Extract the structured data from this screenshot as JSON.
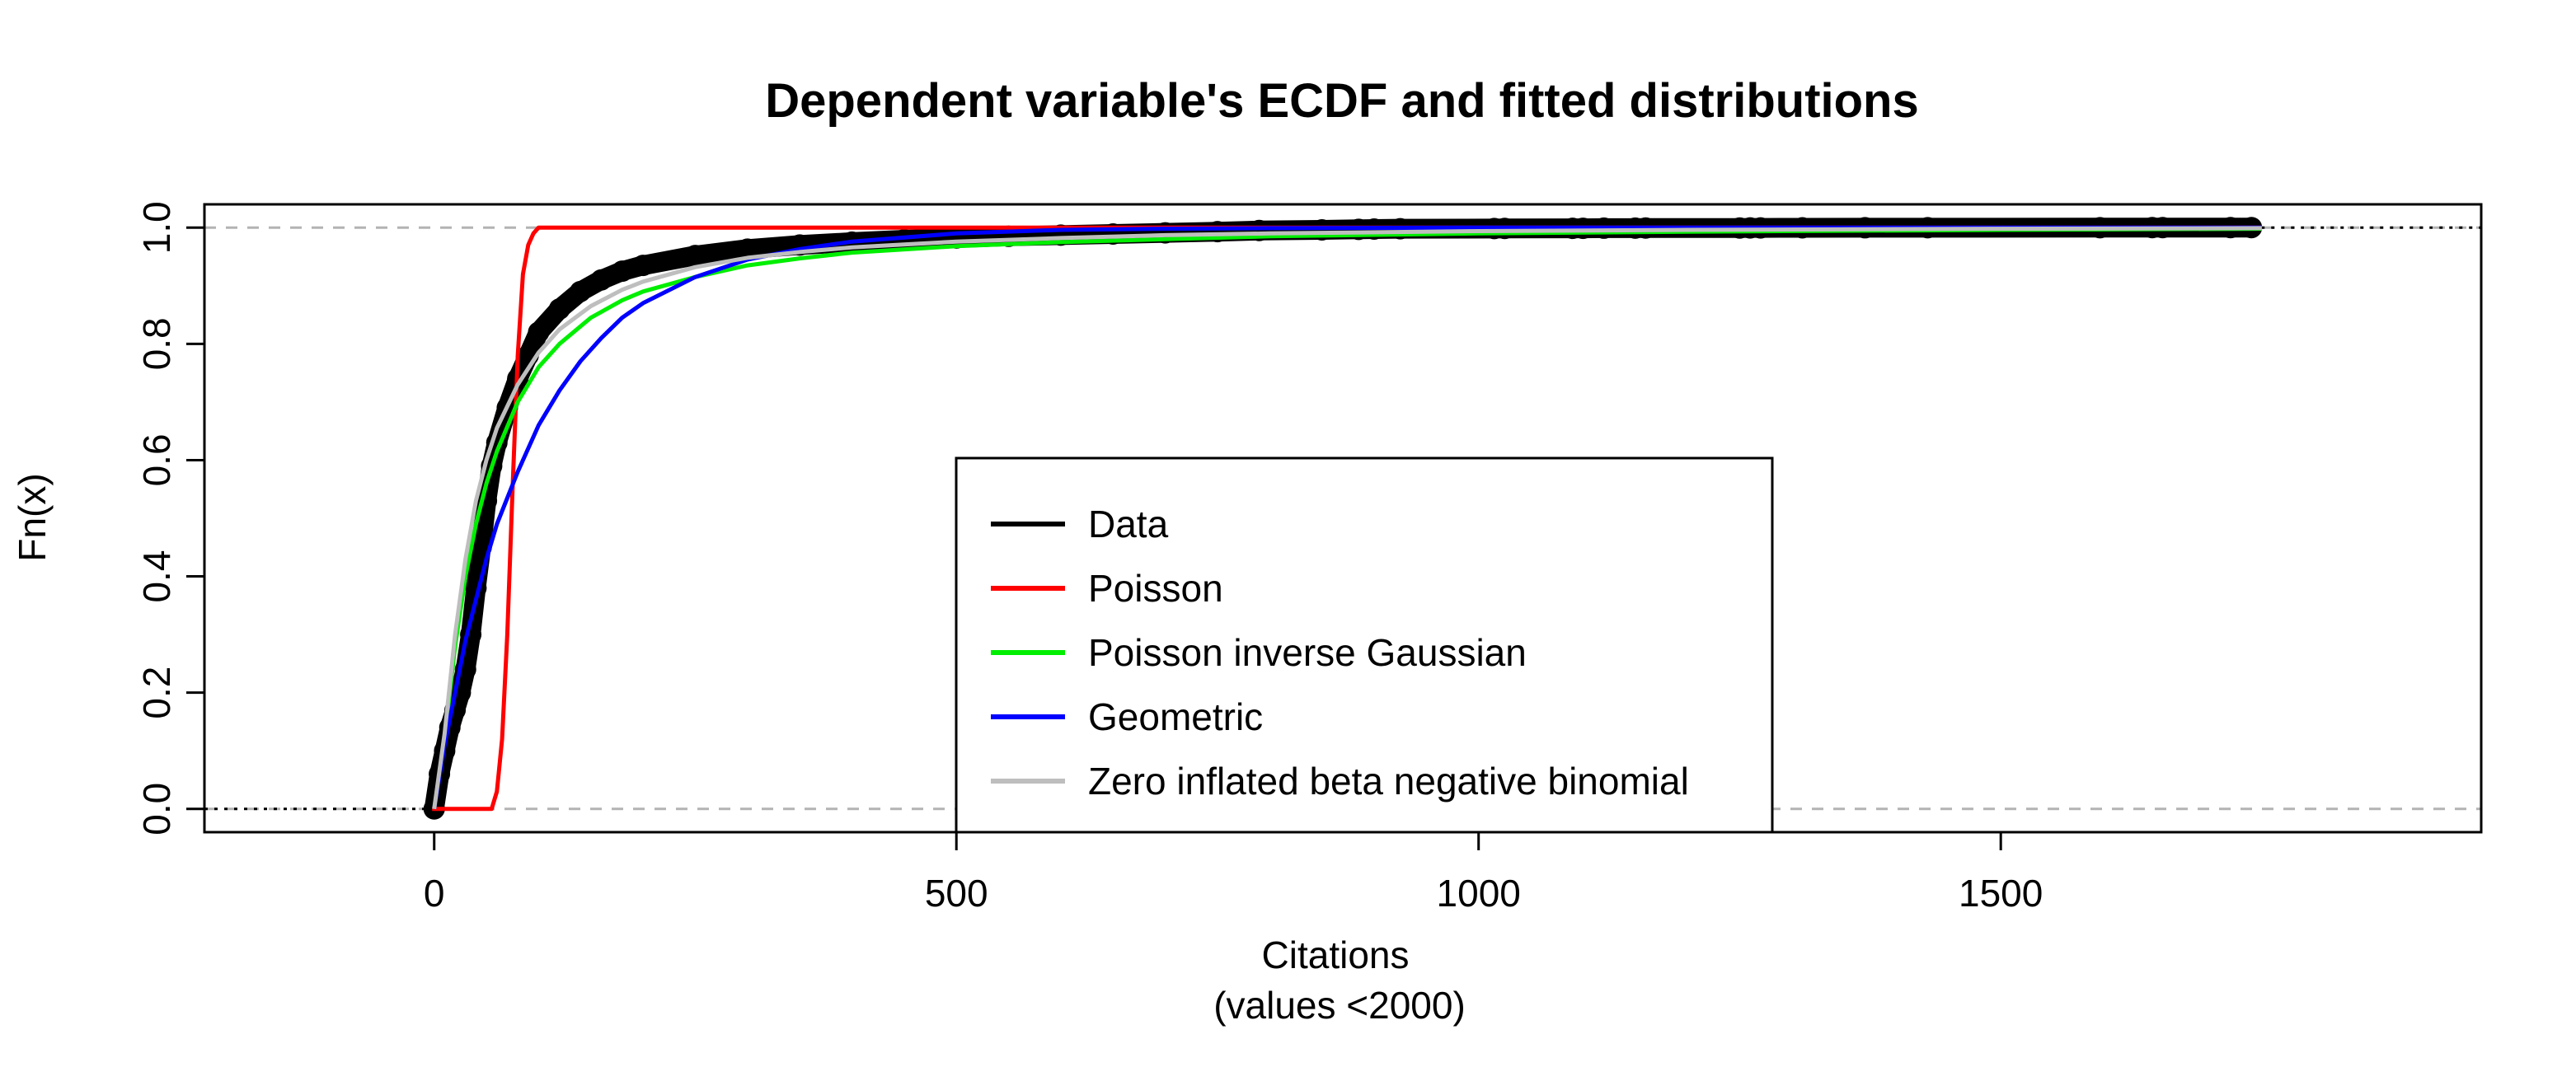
{
  "chart_data": {
    "type": "line",
    "title": "Dependent variable's ECDF and fitted distributions",
    "xlabel": "Citations",
    "xlabel_sub": "(values <2000)",
    "ylabel": "Fn(x)",
    "xlim": [
      -220,
      1960
    ],
    "ylim": [
      -0.04,
      1.04
    ],
    "x_ticks": [
      0,
      500,
      1000,
      1500
    ],
    "y_ticks": [
      0.0,
      0.2,
      0.4,
      0.6,
      0.8,
      1.0
    ],
    "x_tick_labels": [
      "0",
      "500",
      "1000",
      "1500"
    ],
    "y_tick_labels": [
      "0.0",
      "0.2",
      "0.4",
      "0.6",
      "0.8",
      "1.0"
    ],
    "reference_lines": [
      0,
      1
    ],
    "legend_position": "bottom-center",
    "series": [
      {
        "name": "Data",
        "color": "#000000",
        "style": "ecdf-points",
        "points": [
          [
            0,
            0.0
          ],
          [
            5,
            0.06
          ],
          [
            10,
            0.1
          ],
          [
            15,
            0.14
          ],
          [
            20,
            0.17
          ],
          [
            25,
            0.2
          ],
          [
            30,
            0.24
          ],
          [
            35,
            0.3
          ],
          [
            40,
            0.38
          ],
          [
            45,
            0.45
          ],
          [
            50,
            0.53
          ],
          [
            55,
            0.59
          ],
          [
            60,
            0.63
          ],
          [
            70,
            0.69
          ],
          [
            80,
            0.74
          ],
          [
            90,
            0.78
          ],
          [
            100,
            0.82
          ],
          [
            120,
            0.86
          ],
          [
            140,
            0.89
          ],
          [
            160,
            0.91
          ],
          [
            180,
            0.925
          ],
          [
            200,
            0.935
          ],
          [
            250,
            0.952
          ],
          [
            300,
            0.963
          ],
          [
            350,
            0.97
          ],
          [
            400,
            0.975
          ],
          [
            450,
            0.979
          ],
          [
            500,
            0.982
          ],
          [
            550,
            0.985
          ],
          [
            600,
            0.987
          ],
          [
            650,
            0.989
          ],
          [
            700,
            0.991
          ],
          [
            750,
            0.993
          ],
          [
            790,
            0.995
          ],
          [
            850,
            0.996
          ],
          [
            885,
            0.997
          ],
          [
            900,
            0.9975
          ],
          [
            925,
            0.998
          ],
          [
            1015,
            0.9983
          ],
          [
            1025,
            0.9985
          ],
          [
            1090,
            0.9987
          ],
          [
            1100,
            0.9988
          ],
          [
            1120,
            0.999
          ],
          [
            1150,
            0.9991
          ],
          [
            1160,
            0.9992
          ],
          [
            1250,
            0.9993
          ],
          [
            1260,
            0.9994
          ],
          [
            1270,
            0.9995
          ],
          [
            1310,
            0.9996
          ],
          [
            1370,
            0.9997
          ],
          [
            1430,
            0.9998
          ],
          [
            1595,
            0.99985
          ],
          [
            1645,
            0.9999
          ],
          [
            1655,
            0.99993
          ],
          [
            1720,
            0.99996
          ],
          [
            1740,
            1.0
          ]
        ]
      },
      {
        "name": "Poisson",
        "color": "#ff0000",
        "style": "line",
        "points": [
          [
            -2,
            0.0
          ],
          [
            55,
            0.0
          ],
          [
            60,
            0.03
          ],
          [
            65,
            0.12
          ],
          [
            70,
            0.3
          ],
          [
            75,
            0.55
          ],
          [
            80,
            0.78
          ],
          [
            85,
            0.92
          ],
          [
            90,
            0.97
          ],
          [
            95,
            0.99
          ],
          [
            100,
            1.0
          ],
          [
            1750,
            1.0
          ]
        ]
      },
      {
        "name": "Poisson inverse Gaussian",
        "color": "#00ee00",
        "style": "line",
        "points": [
          [
            0,
            0.0
          ],
          [
            10,
            0.12
          ],
          [
            20,
            0.28
          ],
          [
            30,
            0.4
          ],
          [
            40,
            0.49
          ],
          [
            50,
            0.56
          ],
          [
            60,
            0.615
          ],
          [
            80,
            0.7
          ],
          [
            100,
            0.76
          ],
          [
            120,
            0.8
          ],
          [
            150,
            0.845
          ],
          [
            180,
            0.875
          ],
          [
            200,
            0.89
          ],
          [
            250,
            0.915
          ],
          [
            300,
            0.935
          ],
          [
            350,
            0.947
          ],
          [
            400,
            0.957
          ],
          [
            500,
            0.968
          ],
          [
            600,
            0.975
          ],
          [
            700,
            0.98
          ],
          [
            800,
            0.985
          ],
          [
            1000,
            0.99
          ],
          [
            1200,
            0.993
          ],
          [
            1500,
            0.996
          ],
          [
            1750,
            0.998
          ]
        ]
      },
      {
        "name": "Geometric",
        "color": "#0000ff",
        "style": "line",
        "points": [
          [
            0,
            0.0
          ],
          [
            10,
            0.11
          ],
          [
            20,
            0.2
          ],
          [
            30,
            0.29
          ],
          [
            40,
            0.36
          ],
          [
            50,
            0.43
          ],
          [
            60,
            0.49
          ],
          [
            80,
            0.58
          ],
          [
            100,
            0.66
          ],
          [
            120,
            0.72
          ],
          [
            140,
            0.77
          ],
          [
            160,
            0.81
          ],
          [
            180,
            0.845
          ],
          [
            200,
            0.87
          ],
          [
            250,
            0.915
          ],
          [
            300,
            0.945
          ],
          [
            350,
            0.963
          ],
          [
            400,
            0.976
          ],
          [
            500,
            0.99
          ],
          [
            600,
            0.996
          ],
          [
            700,
            0.998
          ],
          [
            800,
            0.999
          ],
          [
            1000,
            1.0
          ],
          [
            1750,
            1.0
          ]
        ]
      },
      {
        "name": "Zero inflated beta negative binomial",
        "color": "#bebebe",
        "style": "line",
        "points": [
          [
            0,
            0.0
          ],
          [
            10,
            0.13
          ],
          [
            20,
            0.3
          ],
          [
            30,
            0.43
          ],
          [
            40,
            0.53
          ],
          [
            50,
            0.6
          ],
          [
            60,
            0.655
          ],
          [
            80,
            0.73
          ],
          [
            100,
            0.785
          ],
          [
            120,
            0.825
          ],
          [
            150,
            0.865
          ],
          [
            180,
            0.893
          ],
          [
            200,
            0.907
          ],
          [
            250,
            0.932
          ],
          [
            300,
            0.948
          ],
          [
            350,
            0.958
          ],
          [
            400,
            0.966
          ],
          [
            500,
            0.976
          ],
          [
            600,
            0.982
          ],
          [
            700,
            0.987
          ],
          [
            800,
            0.99
          ],
          [
            1000,
            0.994
          ],
          [
            1200,
            0.996
          ],
          [
            1500,
            0.998
          ],
          [
            1750,
            0.999
          ]
        ]
      }
    ]
  }
}
